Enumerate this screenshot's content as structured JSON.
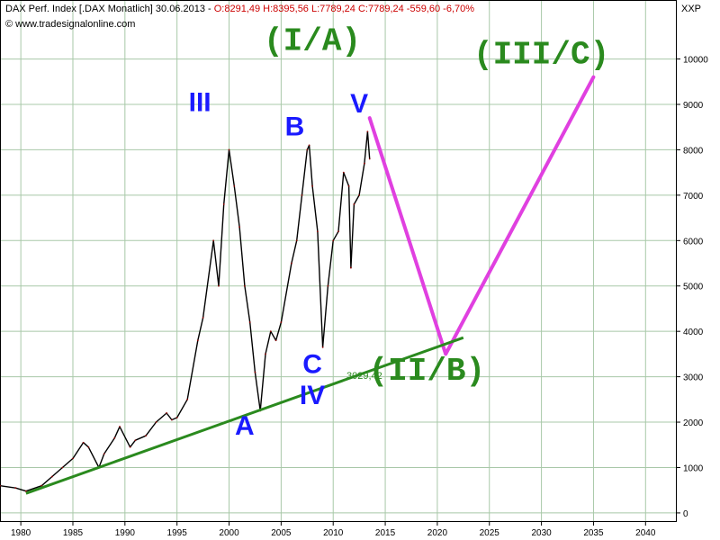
{
  "header": {
    "line1_prefix": "DAX Perf. Index [.DAX  Monatlich] 30.06.2013 - ",
    "line1_values": "O:8291,49 H:8395,56 L:7789,24 C:7789,24 -559,60 -6,70%",
    "line2": "© www.tradesignalonline.com",
    "axis_currency": "XXP"
  },
  "chart_data": {
    "type": "line",
    "x_range": [
      1978,
      2043
    ],
    "ylim": [
      -200,
      11300
    ],
    "grid": true,
    "x_ticks": [
      1980,
      1985,
      1990,
      1995,
      2000,
      2005,
      2010,
      2015,
      2020,
      2025,
      2030,
      2035,
      2040
    ],
    "y_ticks": [
      0,
      1000,
      2000,
      3000,
      4000,
      5000,
      6000,
      7000,
      8000,
      9000,
      10000
    ],
    "series": [
      {
        "kind": "price",
        "x": [
          1978.0,
          1979.5,
          1980.5,
          1982.0,
          1983.0,
          1984.0,
          1985.0,
          1986.0,
          1986.5,
          1987.5,
          1988.0,
          1989.0,
          1989.5,
          1990.5,
          1991.0,
          1992.0,
          1993.0,
          1994.0,
          1994.5,
          1995.0,
          1996.0,
          1997.0,
          1997.5,
          1998.5,
          1999.0,
          1999.5,
          2000.0,
          2000.5,
          2001.0,
          2001.5,
          2002.0,
          2002.5,
          2003.0,
          2003.5,
          2004.0,
          2004.5,
          2005.0,
          2006.0,
          2006.5,
          2007.0,
          2007.5,
          2007.7,
          2008.0,
          2008.5,
          2009.0,
          2009.5,
          2010.0,
          2010.5,
          2011.0,
          2011.5,
          2011.7,
          2012.0,
          2012.5,
          2013.0,
          2013.3,
          2013.5
        ],
        "y": [
          600,
          550,
          480,
          600,
          800,
          1000,
          1200,
          1550,
          1450,
          1000,
          1300,
          1650,
          1900,
          1450,
          1600,
          1700,
          2000,
          2200,
          2050,
          2100,
          2500,
          3800,
          4300,
          6000,
          5000,
          6800,
          8000,
          7200,
          6300,
          5000,
          4200,
          3100,
          2250,
          3500,
          4000,
          3800,
          4200,
          5500,
          6000,
          7000,
          8000,
          8100,
          7200,
          6200,
          3650,
          5000,
          6000,
          6200,
          7500,
          7200,
          5400,
          6800,
          7000,
          7700,
          8400,
          7800
        ]
      },
      {
        "kind": "projection",
        "color": "#e040e0",
        "x": [
          2013.5,
          2020.8,
          2035.0
        ],
        "y": [
          8700,
          3500,
          9600
        ]
      },
      {
        "kind": "trendline",
        "color": "#2a8a1e",
        "x": [
          1980.5,
          2022.5
        ],
        "y": [
          430,
          3860
        ],
        "label": "3029,42",
        "label_at": [
          2013.0,
          2950
        ]
      }
    ],
    "annotations": [
      {
        "text": "III",
        "x": 1997.2,
        "y": 8850,
        "style": "blue"
      },
      {
        "text": "A",
        "x": 2001.5,
        "y": 1720,
        "style": "blue"
      },
      {
        "text": "B",
        "x": 2006.3,
        "y": 8320,
        "style": "blue"
      },
      {
        "text": "C",
        "x": 2008.0,
        "y": 3080,
        "style": "blue"
      },
      {
        "text": "IV",
        "x": 2008.0,
        "y": 2400,
        "style": "blue"
      },
      {
        "text": "V",
        "x": 2012.5,
        "y": 8820,
        "style": "blue"
      },
      {
        "text": "(I/A)",
        "x": 2008.0,
        "y": 10200,
        "style": "green"
      },
      {
        "text": "(III/C)",
        "x": 2030.0,
        "y": 9900,
        "style": "green"
      },
      {
        "text": "(II/B)",
        "x": 2019.0,
        "y": 2930,
        "style": "green"
      }
    ]
  }
}
